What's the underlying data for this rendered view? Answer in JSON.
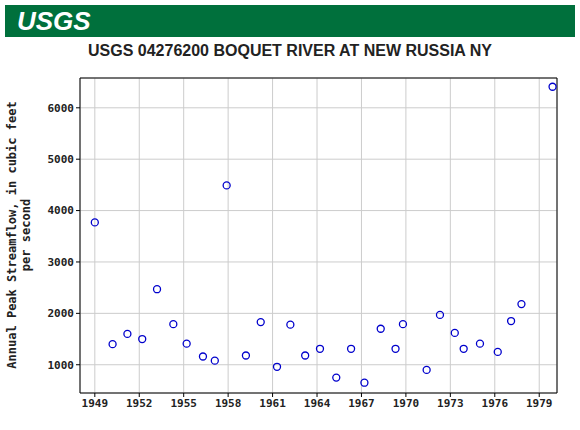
{
  "logo": "USGS",
  "chart_data": {
    "type": "scatter",
    "title": "USGS 04276200 BOQUET RIVER AT NEW RUSSIA NY",
    "y_label": "Annual Peak Streamflow, in cubic feet per second",
    "x": [
      1949.0,
      1950.2,
      1951.2,
      1952.2,
      1953.2,
      1954.3,
      1955.2,
      1956.3,
      1957.1,
      1957.9,
      1959.2,
      1960.2,
      1961.3,
      1962.2,
      1963.2,
      1964.2,
      1965.3,
      1966.3,
      1967.2,
      1968.3,
      1969.3,
      1969.8,
      1971.4,
      1972.3,
      1973.3,
      1973.9,
      1975.0,
      1976.2,
      1977.1,
      1977.8,
      1979.9
    ],
    "values": [
      3770,
      1400,
      1600,
      1500,
      2470,
      1790,
      1410,
      1160,
      1080,
      4490,
      1180,
      1830,
      960,
      1780,
      1180,
      1310,
      750,
      1310,
      650,
      1700,
      1310,
      1790,
      900,
      1970,
      1620,
      1310,
      1410,
      1250,
      1850,
      2180,
      6410
    ],
    "color": "#0000cc",
    "marker": "circle_open",
    "xlim": [
      1948,
      1980.2
    ],
    "xticks": [
      1949,
      1952,
      1955,
      1958,
      1961,
      1964,
      1967,
      1970,
      1973,
      1976,
      1979
    ],
    "ylim": [
      450,
      6580
    ],
    "yticks": [
      1000,
      2000,
      3000,
      4000,
      5000,
      6000
    ],
    "grid": true
  }
}
